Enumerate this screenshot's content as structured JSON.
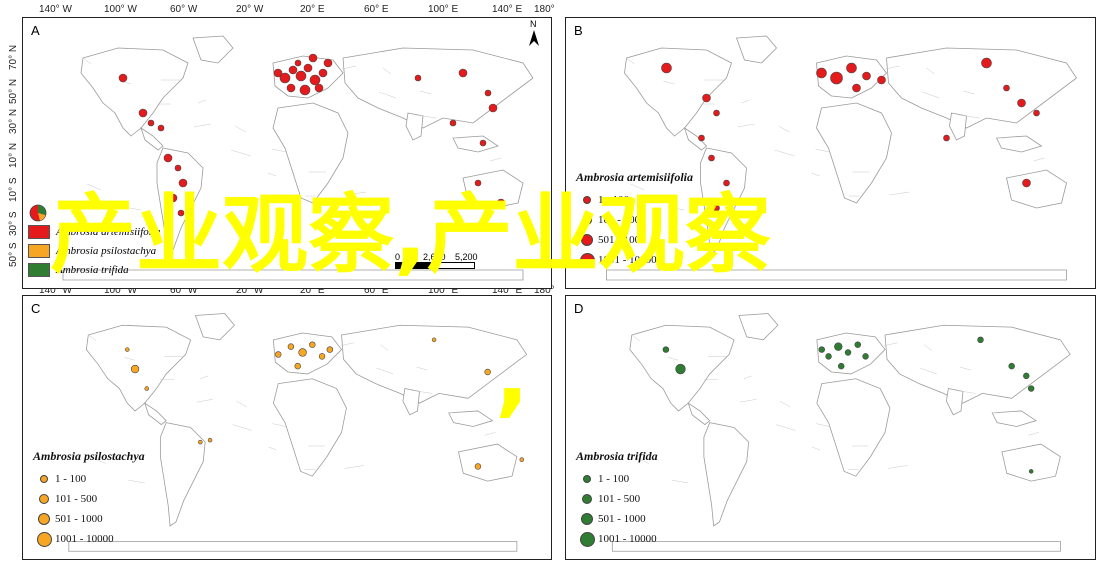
{
  "ticks": {
    "top": [
      "140° W",
      "100° W",
      "60° W",
      "20° W",
      "20° E",
      "60° E",
      "100° E",
      "140° E",
      "180°"
    ],
    "bottom": [
      "140° W",
      "100° W",
      "60° W",
      "20° W",
      "20° E",
      "60° E",
      "100° E",
      "140° E",
      "180°"
    ],
    "left": [
      "70° N",
      "50° N",
      "30° N",
      "10° N",
      "10° S",
      "30° S",
      "50° S"
    ]
  },
  "panels": {
    "A": {
      "label": "A"
    },
    "B": {
      "label": "B",
      "legend_title": "Ambrosia artemisiifolia",
      "color": "#e41a1c",
      "ranges": [
        "1 - 100",
        "101 - 500",
        "501 - 1000",
        "1001 - 10000"
      ]
    },
    "C": {
      "label": "C",
      "legend_title": "Ambrosia psilostachya",
      "color": "#f6a623",
      "ranges": [
        "1 - 100",
        "101 - 500",
        "501 - 1000",
        "1001 - 10000"
      ]
    },
    "D": {
      "label": "D",
      "legend_title": "Ambrosia trifida",
      "color": "#2e7d32",
      "ranges": [
        "1 - 100",
        "101 - 500",
        "501 - 1000",
        "1001 - 10000"
      ]
    }
  },
  "legend_A": [
    {
      "name": "Ambrosia artemisiifolia",
      "color": "#e41a1c"
    },
    {
      "name": "Ambrosia psilostachya",
      "color": "#f6a623"
    },
    {
      "name": "Ambrosia trifida",
      "color": "#2e7d32"
    }
  ],
  "north_label": "N",
  "scale_labels": [
    "0",
    "2,600",
    "5,200"
  ],
  "overlay_text": {
    "line1": "产业观察,产业观察",
    "comma": ","
  }
}
